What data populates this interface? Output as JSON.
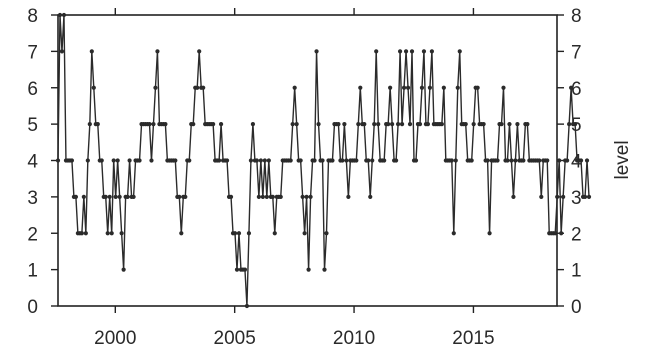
{
  "chart_data": {
    "type": "line",
    "title": "",
    "xlabel": "",
    "ylabel": "",
    "y2label": "level",
    "xlim": [
      1997.6,
      2018.5
    ],
    "ylim": [
      0,
      8
    ],
    "x_ticks": [
      2000,
      2005,
      2010,
      2015
    ],
    "x_tick_labels": [
      "2000",
      "2005",
      "2010",
      "2015"
    ],
    "y_ticks": [
      0,
      1,
      2,
      3,
      4,
      5,
      6,
      7,
      8
    ],
    "y_tick_labels": [
      "0",
      "1",
      "2",
      "3",
      "4",
      "5",
      "6",
      "7",
      "8"
    ],
    "y2_ticks": [
      0,
      1,
      2,
      3,
      4,
      5,
      6,
      7,
      8
    ],
    "y2_tick_labels": [
      "0",
      "1",
      "2",
      "3",
      "4",
      "5",
      "6",
      "7",
      "8"
    ],
    "grid": false,
    "legend": "none",
    "line_color": "#2b2b2b",
    "marker": "dot",
    "series": [
      {
        "x_start": 1997.6,
        "x_step": 0.0833,
        "values": [
          4,
          8,
          7,
          8,
          4,
          4,
          4,
          4,
          3,
          3,
          2,
          2,
          2,
          3,
          2,
          4,
          5,
          7,
          6,
          5,
          5,
          4,
          4,
          3,
          3,
          2,
          3,
          2,
          4,
          3,
          4,
          3,
          2,
          1,
          3,
          3,
          4,
          3,
          3,
          4,
          4,
          4,
          5,
          5,
          5,
          5,
          5,
          4,
          5,
          6,
          7,
          5,
          5,
          5,
          5,
          4,
          4,
          4,
          4,
          4,
          3,
          3,
          2,
          3,
          3,
          4,
          4,
          5,
          5,
          6,
          6,
          7,
          6,
          6,
          5,
          5,
          5,
          5,
          5,
          4,
          4,
          4,
          5,
          4,
          4,
          4,
          3,
          3,
          2,
          2,
          1,
          2,
          1,
          1,
          1,
          0,
          2,
          4,
          5,
          4,
          4,
          3,
          4,
          3,
          4,
          3,
          4,
          3,
          3,
          2,
          3,
          3,
          3,
          4,
          4,
          4,
          4,
          4,
          5,
          6,
          5,
          4,
          4,
          3,
          2,
          3,
          1,
          3,
          4,
          4,
          7,
          5,
          4,
          4,
          1,
          2,
          4,
          4,
          4,
          5,
          5,
          5,
          4,
          4,
          5,
          4,
          3,
          4,
          4,
          4,
          4,
          5,
          6,
          5,
          5,
          4,
          4,
          3,
          4,
          5,
          7,
          5,
          4,
          4,
          4,
          5,
          5,
          6,
          5,
          4,
          4,
          5,
          7,
          5,
          6,
          7,
          6,
          5,
          7,
          4,
          4,
          5,
          5,
          6,
          7,
          5,
          5,
          6,
          7,
          5,
          5,
          5,
          5,
          5,
          6,
          4,
          4,
          4,
          4,
          2,
          4,
          6,
          7,
          5,
          5,
          5,
          4,
          4,
          4,
          5,
          6,
          6,
          5,
          5,
          5,
          4,
          4,
          2,
          4,
          4,
          4,
          4,
          5,
          5,
          6,
          4,
          4,
          5,
          4,
          3,
          4,
          5,
          4,
          4,
          4,
          5,
          5,
          4,
          4,
          4,
          4,
          4,
          4,
          3,
          4,
          4,
          4,
          2,
          2,
          2,
          2,
          3,
          4,
          2,
          3,
          4,
          4,
          5,
          6,
          5,
          5,
          4,
          4,
          4,
          3,
          3,
          4,
          3
        ]
      }
    ]
  }
}
